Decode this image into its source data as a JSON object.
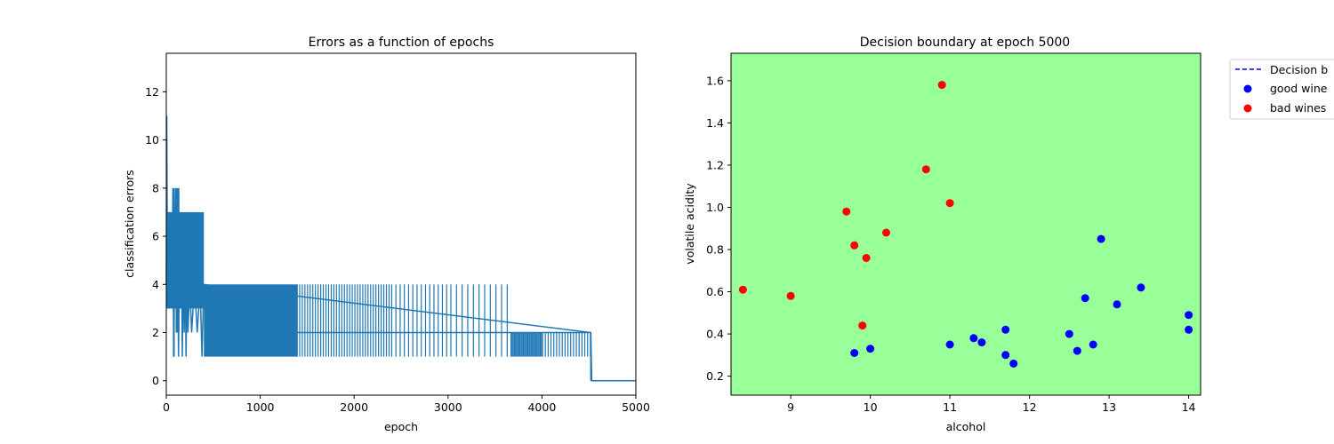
{
  "chart_data": [
    {
      "type": "line",
      "title": "Errors as a function of epochs",
      "xlabel": "epoch",
      "ylabel": "classification errors",
      "xlim": [
        0,
        5000
      ],
      "ylim": [
        -0.6,
        13.6
      ],
      "xticks": [
        0,
        1000,
        2000,
        3000,
        4000,
        5000
      ],
      "yticks": [
        0,
        2,
        4,
        6,
        8,
        10,
        12
      ],
      "color": "#1f77b4",
      "grid": false,
      "series": [
        {
          "name": "",
          "description_points": [
            [
              0,
              4
            ],
            [
              5,
              11
            ],
            [
              10,
              6
            ],
            [
              20,
              3
            ],
            [
              30,
              7
            ],
            [
              40,
              4
            ],
            [
              50,
              6
            ],
            [
              60,
              3
            ],
            [
              70,
              8
            ],
            [
              80,
              1
            ],
            [
              90,
              5
            ],
            [
              100,
              8
            ],
            [
              110,
              2
            ],
            [
              120,
              7
            ],
            [
              130,
              1
            ],
            [
              140,
              5
            ],
            [
              150,
              3
            ],
            [
              160,
              6
            ],
            [
              170,
              1
            ],
            [
              180,
              5
            ],
            [
              190,
              2
            ],
            [
              200,
              5
            ],
            [
              210,
              1
            ],
            [
              220,
              4
            ],
            [
              230,
              2
            ],
            [
              250,
              4
            ],
            [
              270,
              2
            ],
            [
              300,
              4
            ],
            [
              330,
              2
            ],
            [
              360,
              4
            ],
            [
              380,
              1
            ],
            [
              400,
              4
            ],
            [
              4520,
              2
            ],
            [
              4530,
              0
            ],
            [
              5000,
              0
            ]
          ]
        }
      ]
    },
    {
      "type": "scatter",
      "title": "Decision boundary at epoch 5000",
      "xlabel": "alcohol",
      "ylabel": "volatile acidity",
      "xlim": [
        8.25,
        14.15
      ],
      "ylim": [
        0.11,
        1.73
      ],
      "xticks": [
        9,
        10,
        11,
        12,
        13,
        14
      ],
      "yticks": [
        0.2,
        0.4,
        0.6,
        0.8,
        1.0,
        1.2,
        1.4,
        1.6
      ],
      "background": "#99ff99",
      "legend_position": "outside-right-top",
      "legend": [
        {
          "label": "Decision b",
          "style": "dashed-line",
          "color": "#0000ff"
        },
        {
          "label": "good wine",
          "style": "marker",
          "color": "#0000ff"
        },
        {
          "label": "bad wines",
          "style": "marker",
          "color": "#ff0000"
        }
      ],
      "series": [
        {
          "name": "good wine",
          "color": "#0000ff",
          "x": [
            9.8,
            10.0,
            11.0,
            11.3,
            11.4,
            11.7,
            11.7,
            11.8,
            12.5,
            12.6,
            12.7,
            12.8,
            12.9,
            13.1,
            13.4,
            14.0,
            14.0
          ],
          "y": [
            0.31,
            0.33,
            0.35,
            0.38,
            0.36,
            0.42,
            0.3,
            0.26,
            0.4,
            0.32,
            0.57,
            0.35,
            0.85,
            0.54,
            0.62,
            0.49,
            0.42
          ]
        },
        {
          "name": "bad wines",
          "color": "#ff0000",
          "x": [
            8.4,
            9.0,
            9.7,
            9.8,
            9.9,
            9.95,
            10.2,
            10.7,
            10.9,
            11.0
          ],
          "y": [
            0.61,
            0.58,
            0.98,
            0.82,
            0.44,
            0.76,
            0.88,
            1.18,
            1.58,
            1.02
          ]
        }
      ]
    }
  ]
}
